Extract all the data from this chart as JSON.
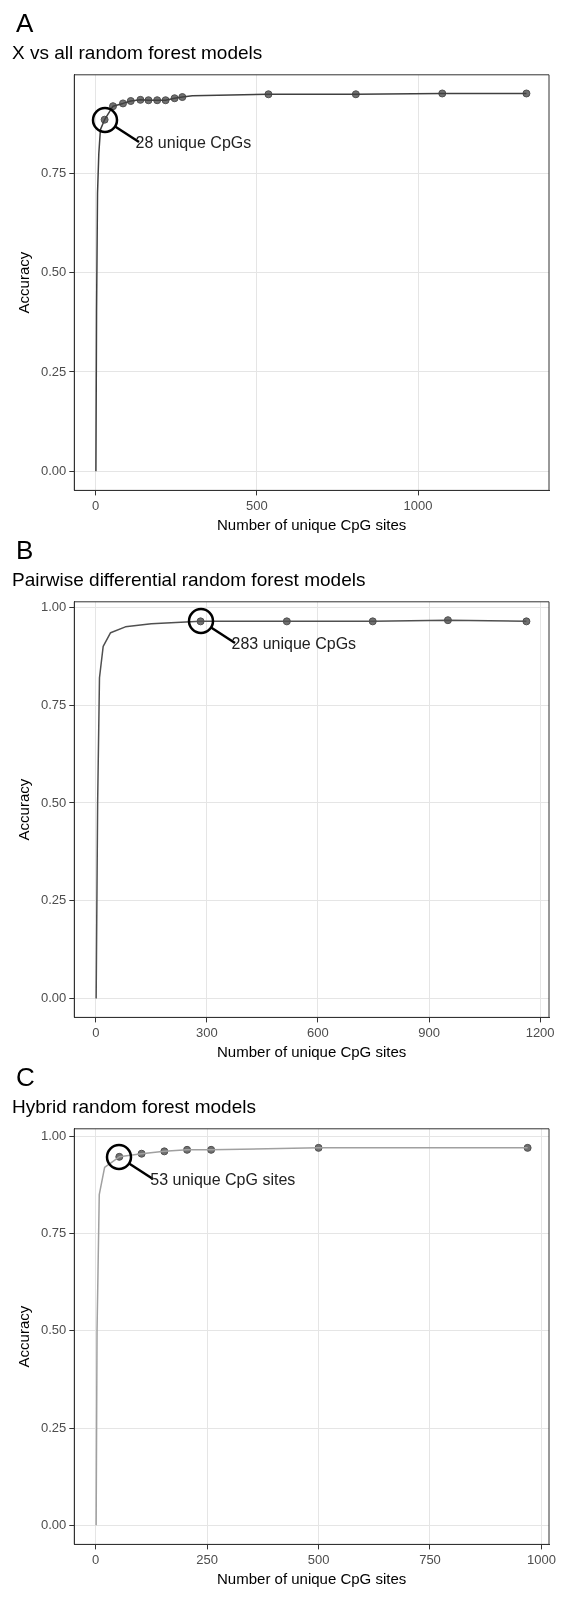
{
  "chart_data": [
    {
      "type": "line",
      "title": "X vs all random forest models",
      "xlabel": "Number of unique CpG sites",
      "ylabel": "Accuracy",
      "annotations": [
        "A",
        {
          "text": "28 unique CpGs",
          "x": 28,
          "y": 0.885
        }
      ],
      "series": [
        {
          "type": "line",
          "color": "#404040",
          "marker": "none",
          "x": [
            1,
            3,
            6,
            10,
            15,
            28,
            54,
            85,
            109,
            139,
            164,
            191,
            217,
            245,
            269,
            300,
            536,
            807,
            1075,
            1336
          ],
          "values": [
            0,
            0.4,
            0.7,
            0.8,
            0.86,
            0.885,
            0.919,
            0.926,
            0.932,
            0.935,
            0.934,
            0.934,
            0.934,
            0.939,
            0.942,
            0.945,
            0.949,
            0.949,
            0.951,
            0.951
          ]
        },
        {
          "type": "scatter",
          "color": "#707070",
          "marker": "circle",
          "x": [
            28,
            54,
            85,
            109,
            139,
            164,
            191,
            217,
            245,
            269,
            536,
            807,
            1075,
            1336
          ],
          "values": [
            0.885,
            0.919,
            0.926,
            0.932,
            0.935,
            0.934,
            0.934,
            0.934,
            0.939,
            0.942,
            0.949,
            0.949,
            0.951,
            0.951
          ]
        }
      ],
      "xlim": [
        -66,
        1406
      ],
      "xticks": [
        0,
        500,
        1000
      ],
      "ylim": [
        -0.048,
        0.998
      ],
      "yticks": [
        {
          "value": 0,
          "label": "0.00"
        },
        {
          "value": 0.25,
          "label": "0.25"
        },
        {
          "value": 0.5,
          "label": "0.50"
        },
        {
          "value": 0.75,
          "label": "0.75"
        }
      ],
      "grid": true,
      "legend": false
    },
    {
      "type": "line",
      "title": "Pairwise differential random forest models",
      "xlabel": "Number of unique CpG sites",
      "ylabel": "Accuracy",
      "annotations": [
        "B",
        {
          "text": "283 unique CpGs",
          "x": 283,
          "y": 0.964
        }
      ],
      "series": [
        {
          "type": "line",
          "color": "#505050",
          "marker": "none",
          "x": [
            1,
            5,
            10,
            20,
            40,
            80,
            150,
            283,
            516,
            748,
            951,
            1163
          ],
          "values": [
            0,
            0.5,
            0.82,
            0.9,
            0.935,
            0.95,
            0.958,
            0.964,
            0.964,
            0.964,
            0.967,
            0.964
          ]
        },
        {
          "type": "scatter",
          "color": "#707070",
          "marker": "circle",
          "x": [
            283,
            516,
            748,
            951,
            1163
          ],
          "values": [
            0.964,
            0.964,
            0.964,
            0.967,
            0.964
          ]
        }
      ],
      "xlim": [
        -58,
        1224
      ],
      "xticks": [
        0,
        300,
        600,
        900,
        1200
      ],
      "ylim": [
        -0.048,
        1.014
      ],
      "yticks": [
        {
          "value": 0,
          "label": "0.00"
        },
        {
          "value": 0.25,
          "label": "0.25"
        },
        {
          "value": 0.5,
          "label": "0.50"
        },
        {
          "value": 0.75,
          "label": "0.75"
        },
        {
          "value": 1,
          "label": "1.00"
        }
      ],
      "grid": true,
      "legend": false
    },
    {
      "type": "line",
      "title": "Hybrid random forest models",
      "xlabel": "Number of unique CpG sites",
      "ylabel": "Accuracy",
      "annotations": [
        "C",
        {
          "text": "53 unique CpG sites",
          "x": 53,
          "y": 0.947
        }
      ],
      "series": [
        {
          "type": "line",
          "color": "#a0a0a0",
          "marker": "none",
          "x": [
            1,
            3,
            8,
            20,
            53,
            103,
            154,
            205,
            259,
            500,
            969
          ],
          "values": [
            0,
            0.5,
            0.85,
            0.92,
            0.947,
            0.955,
            0.961,
            0.965,
            0.965,
            0.97,
            0.97
          ]
        },
        {
          "type": "scatter",
          "color": "#707070",
          "marker": "circle",
          "x": [
            53,
            103,
            154,
            205,
            259,
            500,
            969
          ],
          "values": [
            0.947,
            0.955,
            0.961,
            0.965,
            0.965,
            0.97,
            0.97
          ]
        }
      ],
      "xlim": [
        -48,
        1017
      ],
      "xticks": [
        0,
        250,
        500,
        750,
        1000
      ],
      "ylim": [
        -0.049,
        1.019
      ],
      "yticks": [
        {
          "value": 0,
          "label": "0.00"
        },
        {
          "value": 0.25,
          "label": "0.25"
        },
        {
          "value": 0.5,
          "label": "0.50"
        },
        {
          "value": 0.75,
          "label": "0.75"
        },
        {
          "value": 1,
          "label": "1.00"
        }
      ],
      "grid": true,
      "legend": false
    }
  ]
}
